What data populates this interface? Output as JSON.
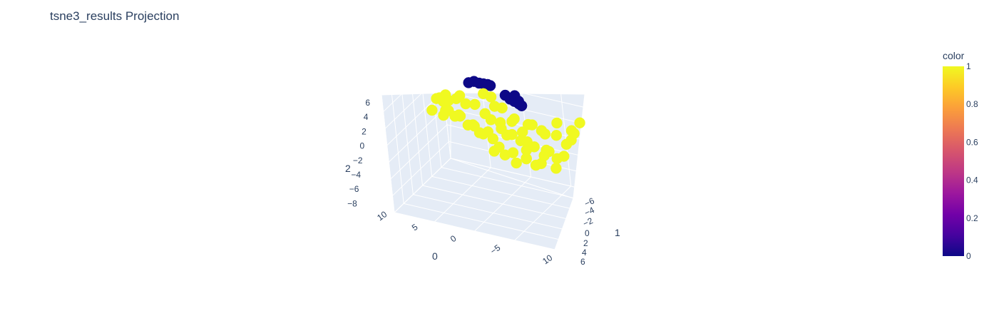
{
  "chart_data": {
    "type": "scatter3d",
    "title": "tsne3_results Projection",
    "axes": {
      "x": {
        "title": "0",
        "ticks": [
          "10",
          "5",
          "0",
          "−5",
          "10"
        ],
        "range": [
          -10,
          10
        ]
      },
      "y": {
        "title": "1",
        "ticks": [
          "−6",
          "−4",
          "−2",
          "0",
          "2",
          "4",
          "6"
        ],
        "range": [
          -6,
          6
        ]
      },
      "z": {
        "title": "2",
        "ticks": [
          "6",
          "4",
          "2",
          "0",
          "−2",
          "−4",
          "−6",
          "−8"
        ],
        "range": [
          -8,
          6
        ]
      }
    },
    "colorbar": {
      "title": "color",
      "range": [
        0,
        1
      ],
      "ticks": [
        "1",
        "0.8",
        "0.6",
        "0.4",
        "0.2",
        "0"
      ],
      "colorscale": [
        "#0d0887",
        "#46039f",
        "#7201a8",
        "#9c179e",
        "#bd3786",
        "#d8576b",
        "#ed7953",
        "#fb9f3a",
        "#fdca26",
        "#f0f921"
      ]
    },
    "series": [
      {
        "color_value": 0,
        "marker_color": "#0d0887",
        "points": [
          [
            -3,
            0.5,
            5.5
          ],
          [
            -2.5,
            0.8,
            5.6
          ],
          [
            -2,
            1.0,
            5.4
          ],
          [
            -1.6,
            1.2,
            5.3
          ],
          [
            -1.2,
            1.4,
            5.2
          ],
          [
            -1.0,
            1.6,
            5.0
          ],
          [
            1.5,
            0.5,
            5.0
          ],
          [
            2.0,
            0.6,
            4.6
          ],
          [
            2.4,
            0.8,
            4.3
          ],
          [
            2.8,
            1.0,
            4.0
          ],
          [
            3.0,
            1.2,
            3.7
          ],
          [
            2.3,
            1.1,
            4.8
          ],
          [
            2.6,
            1.3,
            4.1
          ]
        ]
      },
      {
        "color_value": 1,
        "marker_color": "#f0f921",
        "points": [
          [
            -7,
            0,
            3
          ],
          [
            -6.5,
            0.5,
            2.5
          ],
          [
            -6,
            0.3,
            3.5
          ],
          [
            -5.5,
            -0.2,
            2
          ],
          [
            -5,
            0.8,
            3
          ],
          [
            -4.5,
            0.2,
            1.5
          ],
          [
            -4,
            1,
            2.5
          ],
          [
            -6.8,
            1.2,
            1
          ],
          [
            -6,
            -0.5,
            1.5
          ],
          [
            -5.2,
            1.5,
            0.5
          ],
          [
            -4.8,
            -1,
            3.8
          ],
          [
            -4,
            0,
            4
          ],
          [
            -3.5,
            1.2,
            0
          ],
          [
            -3,
            -0.5,
            1
          ],
          [
            -2.5,
            0.8,
            -0.5
          ],
          [
            -2,
            1.5,
            1.5
          ],
          [
            -1.5,
            0,
            0
          ],
          [
            -1,
            1,
            -1
          ],
          [
            -0.5,
            2,
            0.5
          ],
          [
            0,
            0.5,
            -1.5
          ],
          [
            0.5,
            1.5,
            -0.5
          ],
          [
            1,
            2.5,
            1
          ],
          [
            1.5,
            0.8,
            -2
          ],
          [
            2,
            1.8,
            -1
          ],
          [
            2.5,
            2.8,
            0.5
          ],
          [
            3,
            1,
            -2.5
          ],
          [
            3.5,
            2,
            -1.5
          ],
          [
            4,
            3,
            0
          ],
          [
            4.5,
            1.5,
            -3
          ],
          [
            5,
            2.5,
            -2
          ],
          [
            5.5,
            3.5,
            -0.5
          ],
          [
            6,
            2,
            -3.5
          ],
          [
            6.5,
            3,
            -2.5
          ],
          [
            7,
            4,
            -1
          ],
          [
            7.5,
            3.5,
            0.5
          ],
          [
            8,
            4.5,
            1
          ],
          [
            -1,
            3,
            -4
          ],
          [
            0,
            3.5,
            -5
          ],
          [
            1,
            4,
            -4.5
          ],
          [
            -2,
            2.5,
            -3.5
          ],
          [
            2,
            4.2,
            -5.2
          ],
          [
            3,
            4.5,
            -4
          ],
          [
            -3.5,
            2,
            2
          ],
          [
            -2.8,
            2.8,
            3
          ],
          [
            -1.8,
            3.2,
            1.5
          ],
          [
            0.2,
            -0.8,
            2.5
          ],
          [
            1.2,
            -0.5,
            1.5
          ],
          [
            2.2,
            0.2,
            2.2
          ],
          [
            3.2,
            0.5,
            1
          ],
          [
            4.2,
            1,
            1.8
          ],
          [
            5.2,
            1.8,
            0.5
          ],
          [
            6.2,
            2.8,
            1.5
          ],
          [
            -0.5,
            4,
            -2
          ],
          [
            0.8,
            4.8,
            -3
          ],
          [
            -6.2,
            2,
            0
          ],
          [
            -7.2,
            -0.8,
            2
          ],
          [
            -5.8,
            -1.2,
            4
          ],
          [
            -4.2,
            2.5,
            -1
          ],
          [
            -3.2,
            3.5,
            -2
          ],
          [
            4.8,
            4.2,
            -3.8
          ],
          [
            5.8,
            4.8,
            -2.2
          ],
          [
            6.8,
            5,
            -0.8
          ],
          [
            3.8,
            3.8,
            -2.8
          ],
          [
            1.8,
            3,
            -2.8
          ],
          [
            -1.2,
            1.8,
            3.5
          ],
          [
            -0.2,
            2.2,
            2.2
          ]
        ]
      }
    ]
  }
}
